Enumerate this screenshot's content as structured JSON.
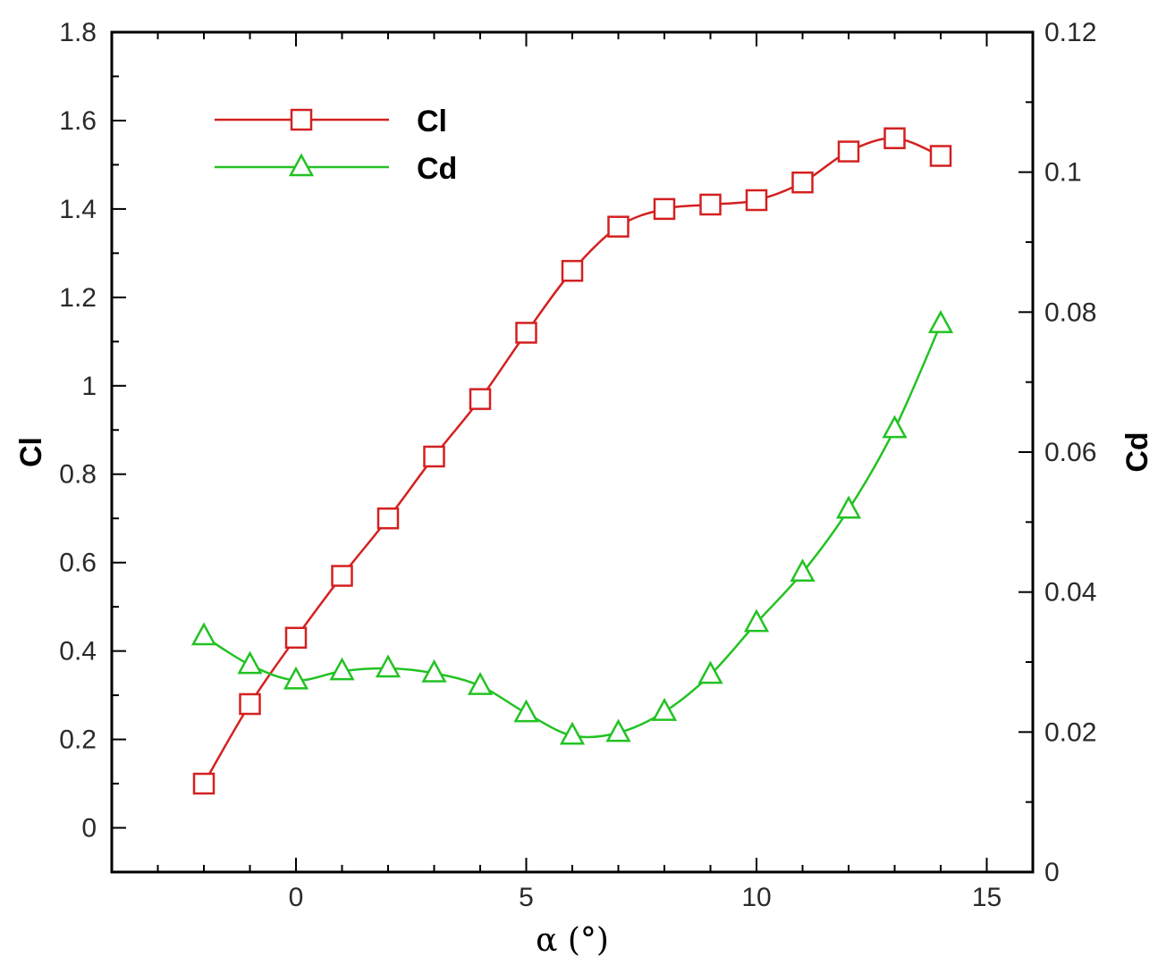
{
  "chart_data": {
    "type": "line",
    "x_label": "α (°)",
    "y_label_left": "Cl",
    "y_label_right": "Cd",
    "x_range": [
      -4,
      16
    ],
    "y_left_range": [
      -0.1,
      1.8
    ],
    "y_right_range": [
      0,
      0.12
    ],
    "x_ticks": [
      0,
      5,
      10,
      15
    ],
    "y_left_ticks": [
      0,
      0.2,
      0.4,
      0.6,
      0.8,
      1,
      1.2,
      1.4,
      1.6,
      1.8
    ],
    "y_right_ticks": [
      0,
      0.02,
      0.04,
      0.06,
      0.08,
      0.1,
      0.12
    ],
    "x_ticks_labels": [
      "0",
      "5",
      "10",
      "15"
    ],
    "y_left_tick_labels": [
      "0",
      "0.2",
      "0.4",
      "0.6",
      "0.8",
      "1",
      "1.2",
      "1.4",
      "1.6",
      "1.8"
    ],
    "y_right_tick_labels": [
      "0",
      "0.02",
      "0.04",
      "0.06",
      "0.08",
      "0.1",
      "0.12"
    ],
    "legend_position": "top-left",
    "series": [
      {
        "name": "Cl",
        "axis": "left",
        "marker": "square",
        "color": "#d42020",
        "x": [
          -2,
          -1,
          0,
          1,
          2,
          3,
          4,
          5,
          6,
          7,
          8,
          9,
          10,
          11,
          12,
          13,
          14
        ],
        "values": [
          0.1,
          0.28,
          0.43,
          0.57,
          0.7,
          0.84,
          0.97,
          1.12,
          1.26,
          1.36,
          1.4,
          1.41,
          1.42,
          1.46,
          1.53,
          1.56,
          1.52
        ]
      },
      {
        "name": "Cd",
        "axis": "right",
        "marker": "triangle",
        "color": "#22c222",
        "x": [
          -2,
          -1,
          0,
          1,
          2,
          3,
          4,
          5,
          6,
          7,
          8,
          9,
          10,
          11,
          12,
          13,
          14
        ],
        "values": [
          0.0337,
          0.0296,
          0.0274,
          0.0287,
          0.0291,
          0.0284,
          0.0266,
          0.0227,
          0.0195,
          0.0199,
          0.0229,
          0.0282,
          0.0356,
          0.0428,
          0.0518,
          0.0633,
          0.0783
        ]
      }
    ]
  }
}
